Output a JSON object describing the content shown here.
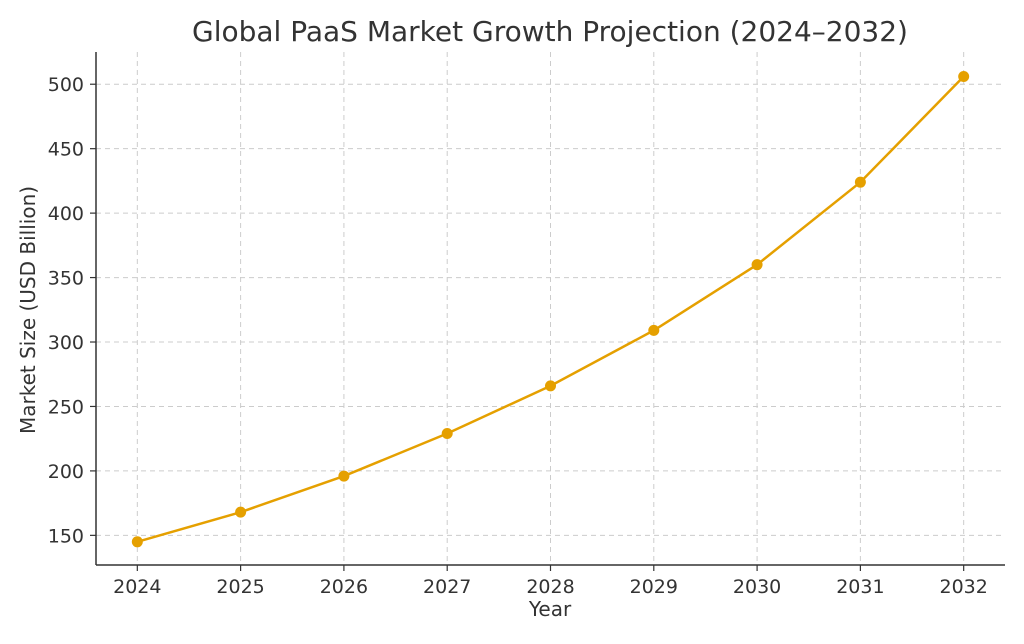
{
  "chart_data": {
    "type": "line",
    "title": "Global PaaS Market Growth Projection (2024–2032)",
    "xlabel": "Year",
    "ylabel": "Market Size (USD Billion)",
    "x": [
      2024,
      2025,
      2026,
      2027,
      2028,
      2029,
      2030,
      2031,
      2032
    ],
    "x_tick_labels": [
      "2024",
      "2025",
      "2026",
      "2027",
      "2028",
      "2029",
      "2030",
      "2031",
      "2032"
    ],
    "y_ticks": [
      150,
      200,
      250,
      300,
      350,
      400,
      450,
      500
    ],
    "y_tick_labels": [
      "150",
      "200",
      "250",
      "300",
      "350",
      "400",
      "450",
      "500"
    ],
    "ylim": [
      127,
      525
    ],
    "xlim": [
      2023.6,
      2032.4
    ],
    "grid": true,
    "series": [
      {
        "values": [
          145,
          168,
          196,
          229,
          266,
          309,
          360,
          424,
          506
        ],
        "color": "#E5A000",
        "marker": "circle"
      }
    ]
  }
}
